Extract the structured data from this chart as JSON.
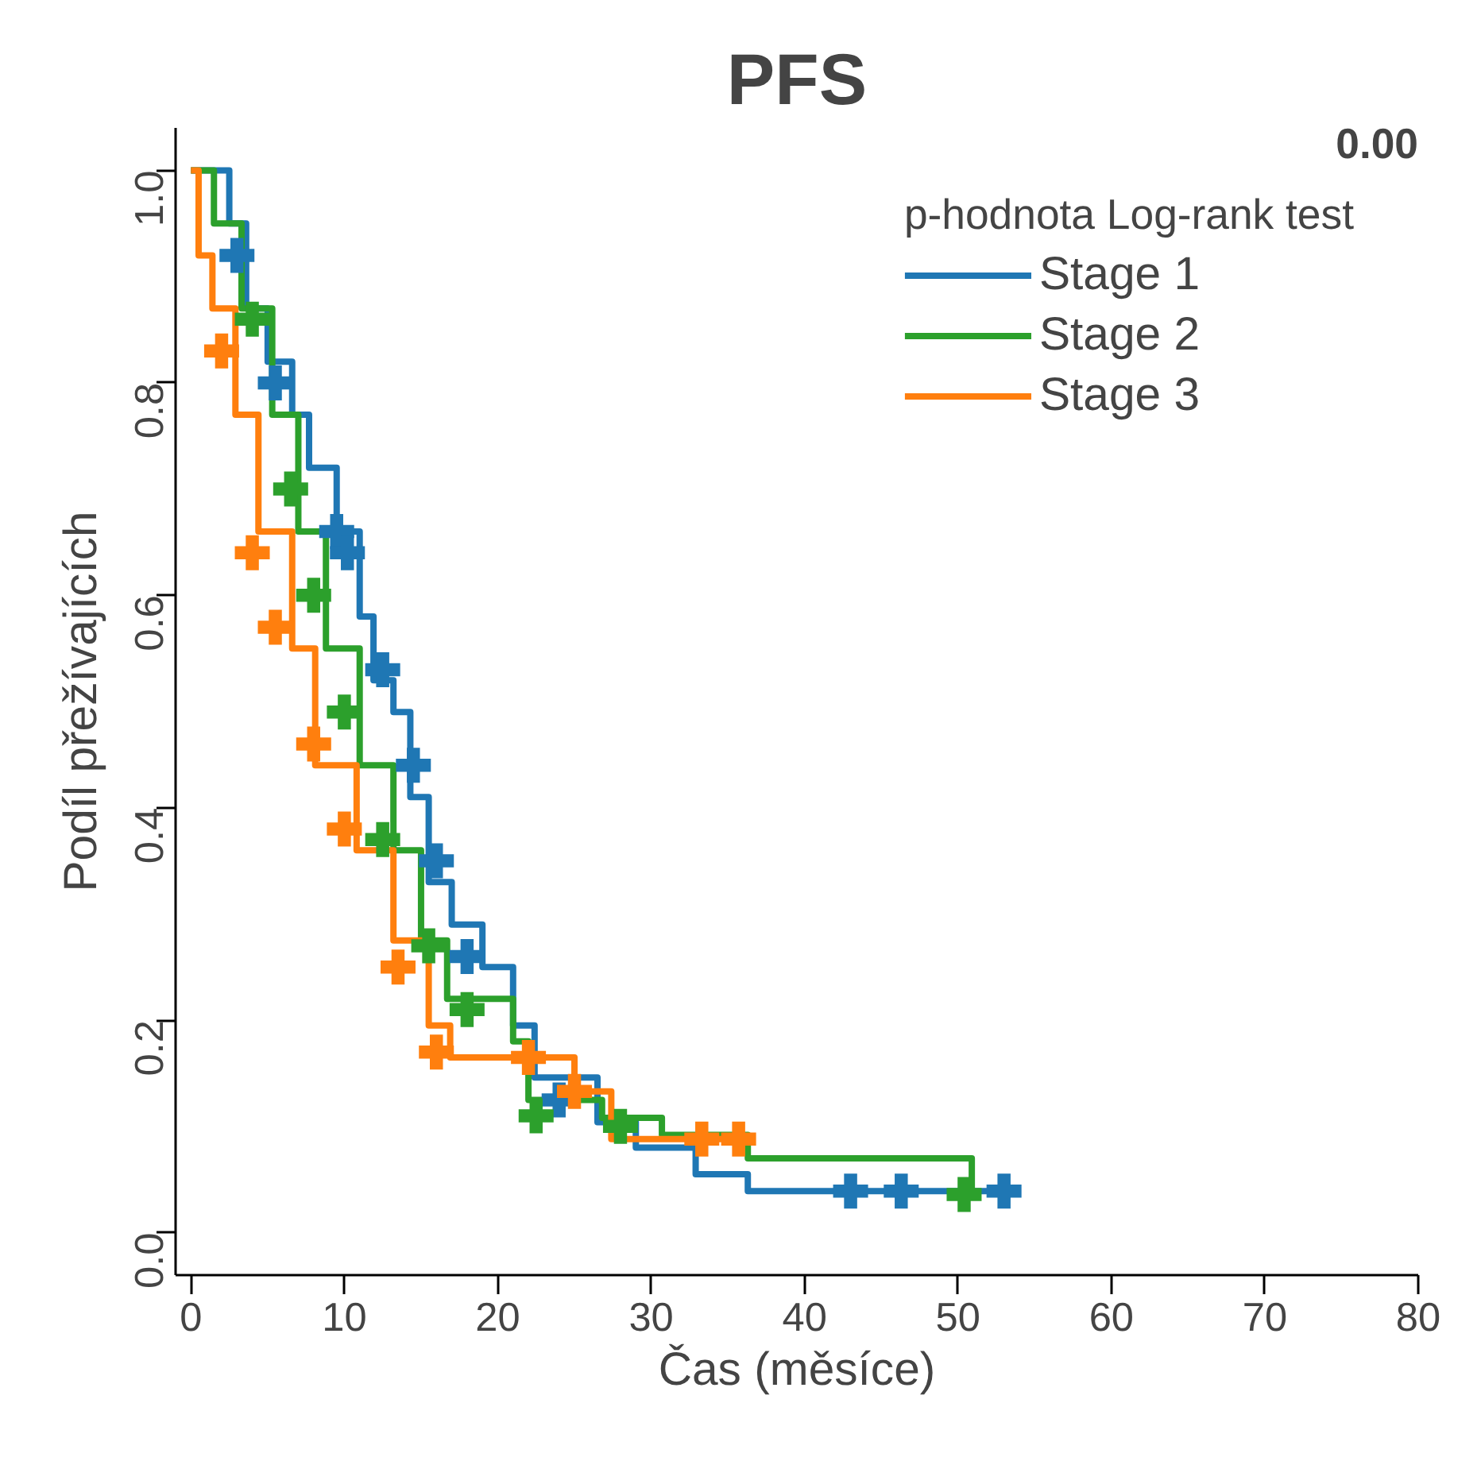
{
  "chart_data": {
    "type": "step",
    "title": "PFS",
    "xlabel": "Čas (měsíce)",
    "ylabel": "Podíl přežívajících",
    "legend_title": "p-hodnota Log-rank test",
    "annotations": [
      "0.00"
    ],
    "xlim": [
      -1,
      80
    ],
    "ylim": [
      -0.04,
      1.04
    ],
    "xticks": [
      0,
      10,
      20,
      30,
      40,
      50,
      60,
      70,
      80
    ],
    "yticks": [
      {
        "value": 0,
        "label": "0.0"
      },
      0.2,
      0.4,
      0.6,
      0.8,
      {
        "value": 1,
        "label": "1.0"
      }
    ],
    "grid": false,
    "legend": "top right",
    "line_style": "solid",
    "series": [
      {
        "name": "Stage 1",
        "color": "#1f77b4",
        "x": [
          0,
          2.5,
          3.6,
          5.0,
          6.6,
          7.7,
          9.5,
          11,
          11.9,
          13.2,
          14.3,
          15.5,
          17,
          19,
          21,
          22.4,
          26.5,
          29,
          32.9,
          36.3,
          53.3
        ],
        "values": [
          1,
          0.95,
          0.87,
          0.82,
          0.77,
          0.72,
          0.66,
          0.58,
          0.52,
          0.49,
          0.41,
          0.33,
          0.29,
          0.25,
          0.195,
          0.146,
          0.104,
          0.08,
          0.055,
          0.039,
          0.039
        ]
      },
      {
        "name": "Stage 2",
        "color": "#2ca02c",
        "x": [
          0,
          1.5,
          3.3,
          5.3,
          7,
          8.8,
          11,
          13.2,
          15,
          16.7,
          21,
          22,
          26.8,
          30.7,
          36.3,
          50.9
        ],
        "values": [
          1,
          0.95,
          0.87,
          0.77,
          0.66,
          0.55,
          0.44,
          0.36,
          0.275,
          0.22,
          0.18,
          0.125,
          0.108,
          0.092,
          0.07,
          0.036
        ]
      },
      {
        "name": "Stage 3",
        "color": "#ff7f0e",
        "x": [
          0,
          0.5,
          1.4,
          2.9,
          4.4,
          6.6,
          8.1,
          10.8,
          13.2,
          15.5,
          16.9,
          25,
          27.4,
          36.8
        ],
        "values": [
          1,
          0.92,
          0.87,
          0.77,
          0.66,
          0.55,
          0.44,
          0.36,
          0.275,
          0.195,
          0.165,
          0.133,
          0.088,
          0.088
        ]
      },
      {
        "type": "scatter",
        "marker": "cross",
        "color": "#1f77b4",
        "x": [
          3,
          5.5,
          9.5,
          10.2,
          12.5,
          14.5,
          16,
          18,
          24,
          43,
          46.3,
          53
        ],
        "values": [
          0.92,
          0.8,
          0.66,
          0.64,
          0.53,
          0.44,
          0.35,
          0.26,
          0.125,
          0.039,
          0.039,
          0.039
        ]
      },
      {
        "type": "scatter",
        "marker": "cross",
        "color": "#2ca02c",
        "x": [
          4,
          6.5,
          8,
          10,
          12.5,
          15.5,
          18,
          22.5,
          28,
          50.4
        ],
        "values": [
          0.86,
          0.7,
          0.6,
          0.49,
          0.37,
          0.27,
          0.21,
          0.11,
          0.1,
          0.036
        ]
      },
      {
        "type": "scatter",
        "marker": "cross",
        "color": "#ff7f0e",
        "x": [
          2,
          4,
          5.5,
          8,
          10,
          13.5,
          16,
          22,
          25,
          33.3,
          35.7
        ],
        "values": [
          0.83,
          0.64,
          0.57,
          0.46,
          0.38,
          0.25,
          0.17,
          0.165,
          0.133,
          0.088,
          0.088
        ]
      }
    ]
  }
}
